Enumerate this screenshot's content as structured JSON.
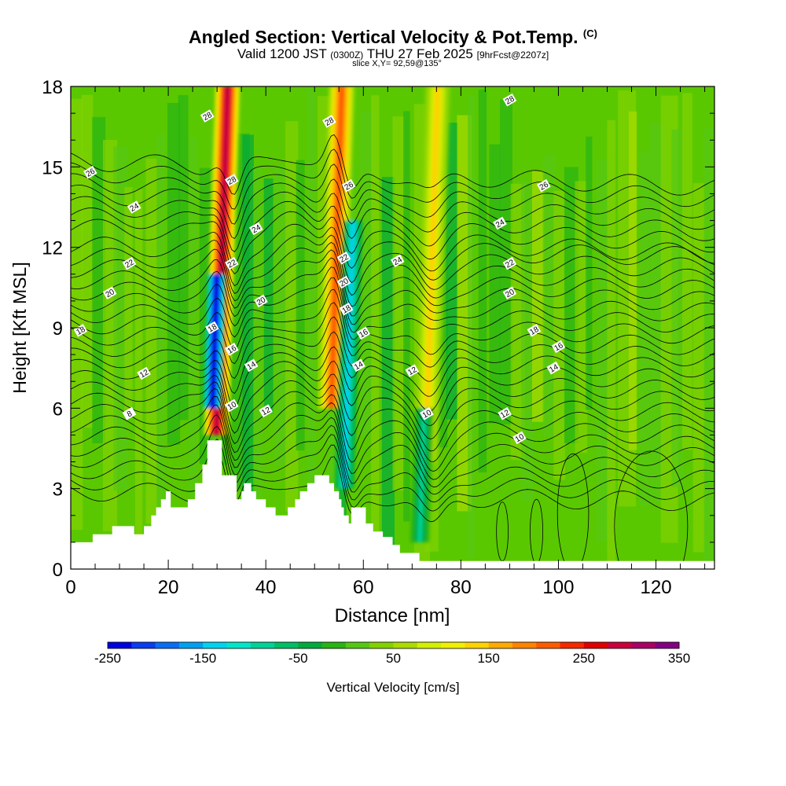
{
  "header": {
    "title_main": "Angled Section: Vertical Velocity & Pot.Temp.",
    "title_suffix": "(C)",
    "valid_prefix": "Valid 1200 JST",
    "valid_utc": "(0300Z)",
    "valid_date": "THU 27 Feb 2025",
    "forecast_tag": "[9hrFcst@2207z]",
    "slice_info": "slice X,Y= 92,59@135°"
  },
  "chart_data": {
    "type": "heatmap",
    "title": "Angled Section: Vertical Velocity & Pot.Temp. (C)",
    "xlabel": "Distance [nm]",
    "ylabel": "Height [Kft MSL]",
    "xlim": [
      0,
      132
    ],
    "ylim": [
      0,
      18
    ],
    "x_ticks": [
      0,
      20,
      40,
      60,
      80,
      100,
      120
    ],
    "y_ticks": [
      0,
      3,
      6,
      9,
      12,
      15,
      18
    ],
    "colorbar": {
      "label": "Vertical Velocity [cm/s]",
      "min": -250,
      "max": 350,
      "step": 25,
      "tick_labels": [
        "-250",
        "-150",
        "-50",
        "50",
        "150",
        "250",
        "350"
      ],
      "colors": [
        "#0000e0",
        "#0a3cf0",
        "#0a6ef5",
        "#00a0f0",
        "#00d2f0",
        "#00e6c8",
        "#00d296",
        "#00be64",
        "#00aa3c",
        "#28b414",
        "#55c814",
        "#82d200",
        "#aadc00",
        "#d2f000",
        "#f0f000",
        "#ffd200",
        "#ffaa00",
        "#ff8200",
        "#ff5a00",
        "#f52800",
        "#e10000",
        "#c8003c",
        "#aa0064",
        "#820082"
      ]
    },
    "velocity_bands": [
      {
        "x": 31,
        "sign": "up",
        "peak_cm_s": 275,
        "top_kft": 18,
        "bottom_kft": 5
      },
      {
        "x": 29.5,
        "sign": "down",
        "peak_cm_s": -240,
        "top_kft": 11,
        "bottom_kft": 6
      },
      {
        "x": 54.5,
        "sign": "up",
        "peak_cm_s": 210,
        "top_kft": 18,
        "bottom_kft": 6
      },
      {
        "x": 57,
        "sign": "down",
        "peak_cm_s": -130,
        "top_kft": 13,
        "bottom_kft": 3
      },
      {
        "x": 74,
        "sign": "up",
        "peak_cm_s": 130,
        "top_kft": 18,
        "bottom_kft": 4
      },
      {
        "x": 72,
        "sign": "down",
        "peak_cm_s": -80,
        "top_kft": 6,
        "bottom_kft": 1
      }
    ],
    "isentropes": [
      {
        "theta": 8,
        "label_at": [
          12,
          5.8
        ]
      },
      {
        "theta": 10,
        "label_at": [
          33,
          6.1
        ]
      },
      {
        "theta": 12,
        "label_at": [
          15,
          7.3
        ]
      },
      {
        "theta": 14,
        "label_at": [
          37,
          7.6
        ]
      },
      {
        "theta": 16,
        "label_at": [
          33,
          8.2
        ]
      },
      {
        "theta": 18,
        "label_at": [
          29,
          9.0
        ]
      },
      {
        "theta": 20,
        "label_at": [
          8,
          10.3
        ]
      },
      {
        "theta": 22,
        "label_at": [
          12,
          11.4
        ]
      },
      {
        "theta": 24,
        "label_at": [
          13,
          13.5
        ]
      },
      {
        "theta": 26,
        "label_at": [
          4,
          14.8
        ]
      },
      {
        "theta": 28,
        "label_at": [
          28,
          16.9
        ]
      }
    ],
    "contour_labels": [
      {
        "text": "8",
        "x": 12,
        "y": 5.8
      },
      {
        "text": "10",
        "x": 33,
        "y": 6.1
      },
      {
        "text": "12",
        "x": 15,
        "y": 7.3
      },
      {
        "text": "14",
        "x": 37,
        "y": 7.6
      },
      {
        "text": "16",
        "x": 33,
        "y": 8.2
      },
      {
        "text": "18",
        "x": 29,
        "y": 9.0
      },
      {
        "text": "20",
        "x": 8,
        "y": 10.3
      },
      {
        "text": "22",
        "x": 12,
        "y": 11.4
      },
      {
        "text": "24",
        "x": 13,
        "y": 13.5
      },
      {
        "text": "26",
        "x": 4,
        "y": 14.8
      },
      {
        "text": "28",
        "x": 28,
        "y": 16.9
      },
      {
        "text": "18",
        "x": 2,
        "y": 8.9
      },
      {
        "text": "28",
        "x": 33,
        "y": 14.5
      },
      {
        "text": "24",
        "x": 38,
        "y": 12.7
      },
      {
        "text": "22",
        "x": 33,
        "y": 11.4
      },
      {
        "text": "20",
        "x": 39,
        "y": 10.0
      },
      {
        "text": "12",
        "x": 40,
        "y": 5.9
      },
      {
        "text": "28",
        "x": 53,
        "y": 16.7
      },
      {
        "text": "26",
        "x": 57,
        "y": 14.3
      },
      {
        "text": "22",
        "x": 56,
        "y": 11.6
      },
      {
        "text": "20",
        "x": 56,
        "y": 10.7
      },
      {
        "text": "18",
        "x": 56.5,
        "y": 9.7
      },
      {
        "text": "16",
        "x": 60,
        "y": 8.8
      },
      {
        "text": "14",
        "x": 59,
        "y": 7.6
      },
      {
        "text": "24",
        "x": 67,
        "y": 11.5
      },
      {
        "text": "12",
        "x": 70,
        "y": 7.4
      },
      {
        "text": "10",
        "x": 73,
        "y": 5.8
      },
      {
        "text": "28",
        "x": 90,
        "y": 17.5
      },
      {
        "text": "26",
        "x": 97,
        "y": 14.3
      },
      {
        "text": "24",
        "x": 88,
        "y": 12.9
      },
      {
        "text": "22",
        "x": 90,
        "y": 11.4
      },
      {
        "text": "20",
        "x": 90,
        "y": 10.3
      },
      {
        "text": "18",
        "x": 95,
        "y": 8.9
      },
      {
        "text": "16",
        "x": 100,
        "y": 8.3
      },
      {
        "text": "14",
        "x": 99,
        "y": 7.5
      },
      {
        "text": "12",
        "x": 89,
        "y": 5.8
      },
      {
        "text": "10",
        "x": 92,
        "y": 4.9
      }
    ],
    "terrain": [
      {
        "x": 0,
        "h": 1.0
      },
      {
        "x": 4.5,
        "h": 1.0
      },
      {
        "x": 4.5,
        "h": 1.3
      },
      {
        "x": 8.5,
        "h": 1.3
      },
      {
        "x": 8.5,
        "h": 1.6
      },
      {
        "x": 13,
        "h": 1.6
      },
      {
        "x": 13,
        "h": 1.3
      },
      {
        "x": 15,
        "h": 1.3
      },
      {
        "x": 15,
        "h": 1.6
      },
      {
        "x": 16.5,
        "h": 1.6
      },
      {
        "x": 16.5,
        "h": 2.0
      },
      {
        "x": 17.5,
        "h": 2.0
      },
      {
        "x": 17.5,
        "h": 2.3
      },
      {
        "x": 18.5,
        "h": 2.3
      },
      {
        "x": 18.5,
        "h": 2.6
      },
      {
        "x": 19.5,
        "h": 2.6
      },
      {
        "x": 19.5,
        "h": 2.9
      },
      {
        "x": 20.5,
        "h": 2.9
      },
      {
        "x": 20.5,
        "h": 2.3
      },
      {
        "x": 24,
        "h": 2.3
      },
      {
        "x": 24,
        "h": 2.6
      },
      {
        "x": 25.5,
        "h": 2.6
      },
      {
        "x": 25.5,
        "h": 3.2
      },
      {
        "x": 27,
        "h": 3.2
      },
      {
        "x": 27,
        "h": 3.9
      },
      {
        "x": 28,
        "h": 3.9
      },
      {
        "x": 28,
        "h": 4.8
      },
      {
        "x": 31,
        "h": 4.8
      },
      {
        "x": 31,
        "h": 3.5
      },
      {
        "x": 34,
        "h": 3.5
      },
      {
        "x": 34,
        "h": 2.6
      },
      {
        "x": 35,
        "h": 2.6
      },
      {
        "x": 35,
        "h": 2.9
      },
      {
        "x": 35.5,
        "h": 2.9
      },
      {
        "x": 35.5,
        "h": 3.2
      },
      {
        "x": 37,
        "h": 3.2
      },
      {
        "x": 37,
        "h": 2.9
      },
      {
        "x": 38,
        "h": 2.9
      },
      {
        "x": 38,
        "h": 2.6
      },
      {
        "x": 40,
        "h": 2.6
      },
      {
        "x": 40,
        "h": 2.3
      },
      {
        "x": 42,
        "h": 2.3
      },
      {
        "x": 42,
        "h": 2.0
      },
      {
        "x": 44.5,
        "h": 2.0
      },
      {
        "x": 44.5,
        "h": 2.3
      },
      {
        "x": 46,
        "h": 2.3
      },
      {
        "x": 46,
        "h": 2.6
      },
      {
        "x": 47,
        "h": 2.6
      },
      {
        "x": 47,
        "h": 2.9
      },
      {
        "x": 48.5,
        "h": 2.9
      },
      {
        "x": 48.5,
        "h": 3.2
      },
      {
        "x": 50,
        "h": 3.2
      },
      {
        "x": 50,
        "h": 3.5
      },
      {
        "x": 53,
        "h": 3.5
      },
      {
        "x": 53,
        "h": 3.2
      },
      {
        "x": 54,
        "h": 3.2
      },
      {
        "x": 54,
        "h": 2.9
      },
      {
        "x": 55,
        "h": 2.9
      },
      {
        "x": 55,
        "h": 2.6
      },
      {
        "x": 55.5,
        "h": 2.6
      },
      {
        "x": 55.5,
        "h": 2.3
      },
      {
        "x": 56,
        "h": 2.3
      },
      {
        "x": 56,
        "h": 2.0
      },
      {
        "x": 57,
        "h": 2.0
      },
      {
        "x": 57,
        "h": 1.7
      },
      {
        "x": 57.5,
        "h": 1.7
      },
      {
        "x": 57.5,
        "h": 2.3
      },
      {
        "x": 60.5,
        "h": 2.3
      },
      {
        "x": 60.5,
        "h": 1.7
      },
      {
        "x": 62,
        "h": 1.7
      },
      {
        "x": 62,
        "h": 1.4
      },
      {
        "x": 64,
        "h": 1.4
      },
      {
        "x": 64,
        "h": 1.2
      },
      {
        "x": 66,
        "h": 1.2
      },
      {
        "x": 66,
        "h": 0.9
      },
      {
        "x": 67.5,
        "h": 0.9
      },
      {
        "x": 67.5,
        "h": 0.6
      },
      {
        "x": 71.5,
        "h": 0.6
      },
      {
        "x": 71.5,
        "h": 0.3
      },
      {
        "x": 132,
        "h": 0.3
      }
    ]
  },
  "colors": {
    "background_field": "#5ac800",
    "terrain": "#ffffff",
    "contour": "#000000",
    "axis": "#000000"
  }
}
